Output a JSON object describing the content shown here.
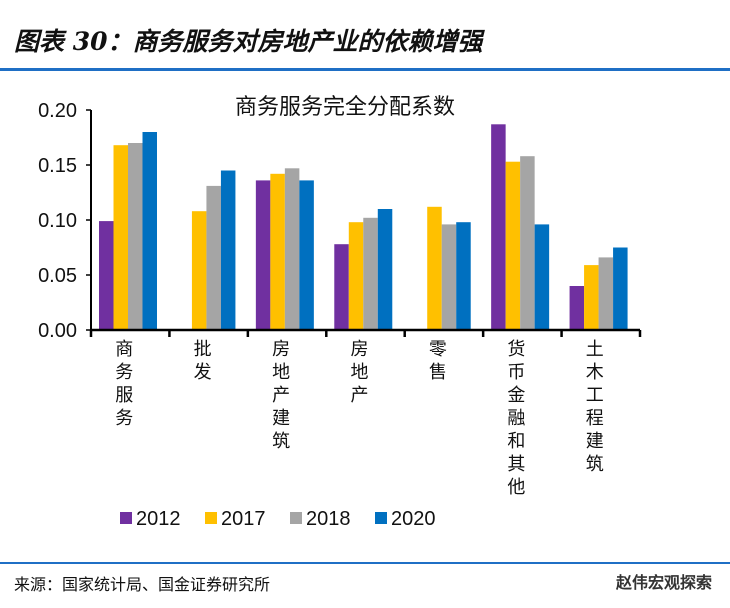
{
  "figure_title": "图表 30：商务服务对房地产业的依赖增强",
  "source": "来源：国家统计局、国金证券研究所",
  "watermark": "赵伟宏观探索",
  "chart_data": {
    "type": "bar",
    "title": "商务服务完全分配系数",
    "categories": [
      "商务服务",
      "批发",
      "房地产建筑",
      "房地产",
      "零售",
      "货币金融和其他",
      "土木工程建筑"
    ],
    "series": [
      {
        "name": "2012",
        "color": "#7030a0",
        "values": [
          0.099,
          null,
          0.136,
          0.078,
          null,
          0.187,
          0.04
        ]
      },
      {
        "name": "2017",
        "color": "#ffc000",
        "values": [
          0.168,
          0.108,
          0.142,
          0.098,
          0.112,
          0.153,
          0.059
        ]
      },
      {
        "name": "2018",
        "color": "#a5a5a5",
        "values": [
          0.17,
          0.131,
          0.147,
          0.102,
          0.096,
          0.158,
          0.066
        ]
      },
      {
        "name": "2020",
        "color": "#0070c0",
        "values": [
          0.18,
          0.145,
          0.136,
          0.11,
          0.098,
          0.096,
          0.075
        ]
      }
    ],
    "yticks": [
      "0.00",
      "0.05",
      "0.10",
      "0.15",
      "0.20"
    ],
    "ylim": [
      0,
      0.2
    ],
    "grid": false,
    "legend": "bottom"
  }
}
